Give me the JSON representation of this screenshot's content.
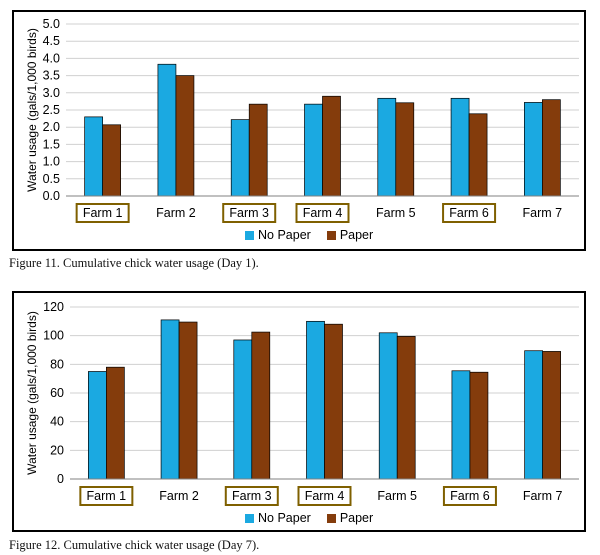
{
  "colors": {
    "no_paper": "#1BA9E1",
    "paper": "#843C0C",
    "gridline": "#D0D0D0",
    "axis": "#808080",
    "box_border": "#7F6000"
  },
  "chart_data": [
    {
      "type": "bar",
      "title": "",
      "xlabel": "",
      "ylabel": "Water usage (gals/1,000 birds)",
      "ylim": [
        0,
        5
      ],
      "y_ticks": [
        "0.0",
        "0.5",
        "1.0",
        "1.5",
        "2.0",
        "2.5",
        "3.0",
        "3.5",
        "4.0",
        "4.5",
        "5.0"
      ],
      "y_tick_values": [
        0,
        0.5,
        1,
        1.5,
        2,
        2.5,
        3,
        3.5,
        4,
        4.5,
        5
      ],
      "categories": [
        "Farm 1",
        "Farm 2",
        "Farm 3",
        "Farm 4",
        "Farm 5",
        "Farm 6",
        "Farm 7"
      ],
      "boxed_categories": [
        "Farm 1",
        "Farm 3",
        "Farm 4",
        "Farm 6"
      ],
      "series": [
        {
          "name": "No Paper",
          "values": [
            2.3,
            3.83,
            2.22,
            2.67,
            2.84,
            2.84,
            2.72
          ]
        },
        {
          "name": "Paper",
          "values": [
            2.07,
            3.5,
            2.67,
            2.9,
            2.71,
            2.39,
            2.8
          ]
        }
      ],
      "legend": [
        "No Paper",
        "Paper"
      ],
      "legend_position": "bottom",
      "grid": true,
      "caption": "Figure 11.  Cumulative chick water usage (Day 1)."
    },
    {
      "type": "bar",
      "title": "",
      "xlabel": "",
      "ylabel": "Water usage (gals/1,000 birds)",
      "ylim": [
        0,
        120
      ],
      "y_ticks": [
        "0",
        "20",
        "40",
        "60",
        "80",
        "100",
        "120"
      ],
      "y_tick_values": [
        0,
        20,
        40,
        60,
        80,
        100,
        120
      ],
      "categories": [
        "Farm 1",
        "Farm 2",
        "Farm 3",
        "Farm 4",
        "Farm 5",
        "Farm 6",
        "Farm 7"
      ],
      "boxed_categories": [
        "Farm 1",
        "Farm 3",
        "Farm 4",
        "Farm 6"
      ],
      "series": [
        {
          "name": "No Paper",
          "values": [
            75,
            111,
            97,
            110,
            102,
            75.5,
            89.5
          ]
        },
        {
          "name": "Paper",
          "values": [
            78,
            109.5,
            102.5,
            108,
            99.5,
            74.5,
            89
          ]
        }
      ],
      "legend": [
        "No Paper",
        "Paper"
      ],
      "legend_position": "bottom",
      "grid": true,
      "caption": "Figure 12.  Cumulative chick water usage (Day 7)."
    }
  ]
}
